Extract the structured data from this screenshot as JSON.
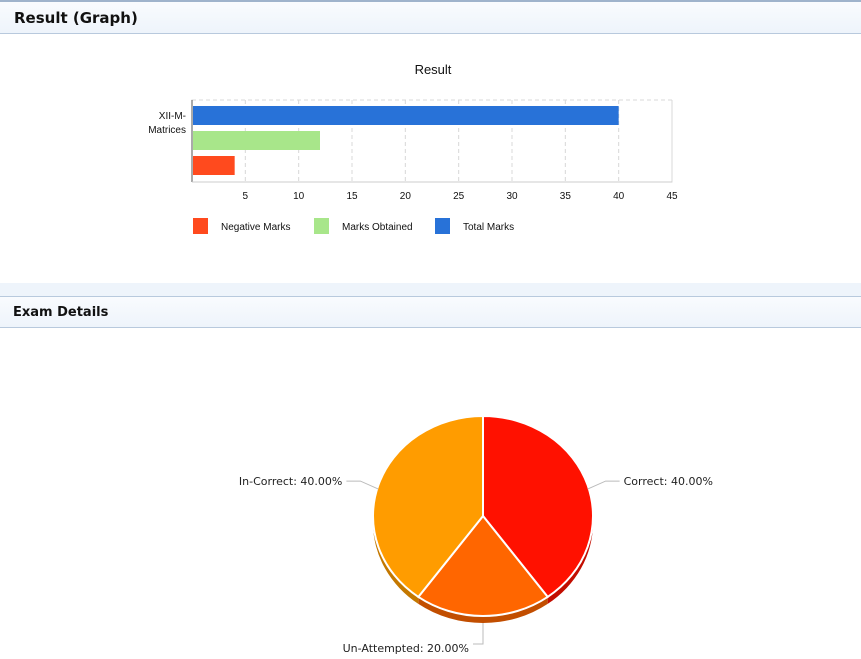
{
  "sections": {
    "result_graph": {
      "title": "Result (Graph)"
    },
    "exam_details": {
      "title": "Exam Details"
    }
  },
  "chart_data": [
    {
      "type": "bar",
      "orientation": "horizontal",
      "title": "Result",
      "categories": [
        "XII-M-Matrices"
      ],
      "category_lines": [
        "XII-M-",
        "Matrices"
      ],
      "xlim": [
        0,
        45
      ],
      "xticks": [
        "5",
        "10",
        "15",
        "20",
        "25",
        "30",
        "35",
        "40",
        "45"
      ],
      "grid": true,
      "legend_position": "bottom",
      "series": [
        {
          "name": "Total Marks",
          "values": [
            40
          ],
          "color": "#2872d8"
        },
        {
          "name": "Marks Obtained",
          "values": [
            12
          ],
          "color": "#a8e68a"
        },
        {
          "name": "Negative Marks",
          "values": [
            4
          ],
          "color": "#ff4a1e"
        }
      ],
      "legend": [
        {
          "name": "Negative Marks",
          "color": "#ff4a1e"
        },
        {
          "name": "Marks Obtained",
          "color": "#a8e68a"
        },
        {
          "name": "Total Marks",
          "color": "#2872d8"
        }
      ]
    },
    {
      "type": "pie",
      "style": "3d",
      "slices": [
        {
          "label": "Correct",
          "value": 40.0,
          "display": "Correct: 40.00%",
          "color": "#ff1100",
          "side_color": "#c20d00"
        },
        {
          "label": "Un-Attempted",
          "value": 20.0,
          "display": "Un-Attempted: 20.00%",
          "color": "#ff6600",
          "side_color": "#c24e00"
        },
        {
          "label": "In-Correct",
          "value": 40.0,
          "display": "In-Correct: 40.00%",
          "color": "#ff9c00",
          "side_color": "#c47800"
        }
      ]
    }
  ]
}
